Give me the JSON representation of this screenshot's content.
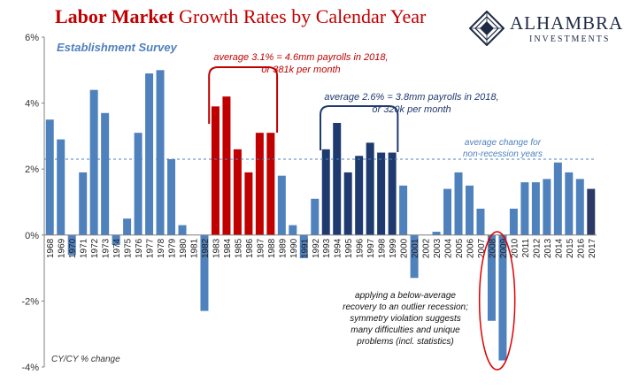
{
  "header": {
    "title_highlight": "Labor Market",
    "title_rest": " Growth Rates by Calendar Year"
  },
  "logo": {
    "name": "ALHAMBRA",
    "sub": "INVESTMENTS"
  },
  "colors": {
    "default_bar": "#4f81bd",
    "red_bar": "#c00000",
    "navy_bar": "#1f3a6e",
    "last_bar": "#2b3a67",
    "red_annotation": "#c00000",
    "navy_annotation": "#1f3a6e",
    "avg_line": "#4f81bd"
  },
  "chart_data": {
    "type": "bar",
    "subtitle": "Establishment Survey",
    "footnote": "CY/CY % change",
    "ylim": [
      -4,
      6
    ],
    "yticks": [
      -4,
      -2,
      0,
      2,
      4,
      6
    ],
    "ytick_labels": [
      "-4%",
      "-2%",
      "0%",
      "2%",
      "4%",
      "6%"
    ],
    "categories": [
      "1968",
      "1969",
      "1970",
      "1971",
      "1972",
      "1973",
      "1974",
      "1975",
      "1976",
      "1977",
      "1978",
      "1979",
      "1980",
      "1981",
      "1982",
      "1983",
      "1984",
      "1985",
      "1986",
      "1987",
      "1988",
      "1989",
      "1990",
      "1991",
      "1992",
      "1993",
      "1994",
      "1995",
      "1996",
      "1997",
      "1998",
      "1999",
      "2000",
      "2001",
      "2002",
      "2003",
      "2004",
      "2005",
      "2006",
      "2007",
      "2008",
      "2009",
      "2010",
      "2011",
      "2012",
      "2013",
      "2014",
      "2015",
      "2016",
      "2017"
    ],
    "values": [
      3.5,
      2.9,
      -0.6,
      1.9,
      4.4,
      3.7,
      -0.3,
      0.5,
      3.1,
      4.9,
      5.0,
      2.3,
      0.3,
      0.0,
      -2.3,
      3.9,
      4.2,
      2.6,
      1.9,
      3.1,
      3.1,
      1.8,
      0.3,
      -0.7,
      1.1,
      2.6,
      3.4,
      1.9,
      2.4,
      2.8,
      2.5,
      2.5,
      1.5,
      -1.3,
      0.0,
      0.1,
      1.4,
      1.9,
      1.5,
      0.8,
      -2.6,
      -3.8,
      0.8,
      1.6,
      1.6,
      1.7,
      2.2,
      1.9,
      1.7,
      1.4
    ],
    "bar_groups": {
      "red": [
        "1983",
        "1984",
        "1985",
        "1986",
        "1987",
        "1988"
      ],
      "navy": [
        "1993",
        "1994",
        "1995",
        "1996",
        "1997",
        "1998",
        "1999"
      ],
      "last": [
        "2017"
      ]
    },
    "avg_line_value": 2.3,
    "annotations": {
      "red_line1": "average 3.1% = 4.6mm payrolls in 2018,",
      "red_line2": "or 381k per month",
      "navy_line1": "average 2.6% = 3.8mm payrolls in 2018,",
      "navy_line2": "or 320k per month",
      "avg_line1": "average change for",
      "avg_line2": "non-recession years",
      "note_lines": [
        "applying a below-average",
        "recovery to an outlier recession;",
        "symmetry violation suggests",
        "many difficulties and unique",
        "problems (incl. statistics)"
      ]
    },
    "grid": false,
    "legend": "none"
  }
}
